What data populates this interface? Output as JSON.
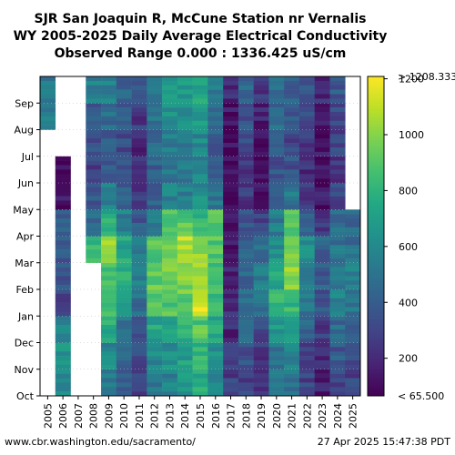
{
  "chart_data": {
    "type": "heatmap",
    "title_lines": [
      "SJR San Joaquin R, McCune Station nr Vernalis",
      "WY 2005-2025 Daily Average Electrical Conductivity",
      "Observed Range 0.000 : 1336.425 uS/cm"
    ],
    "x_categories": [
      "2005",
      "2006",
      "2007",
      "2008",
      "2009",
      "2010",
      "2011",
      "2012",
      "2013",
      "2014",
      "2015",
      "2016",
      "2017",
      "2018",
      "2019",
      "2020",
      "2021",
      "2022",
      "2023",
      "2024",
      "2025"
    ],
    "y_categories": [
      "Oct",
      "Nov",
      "Dec",
      "Jan",
      "Feb",
      "Mar",
      "Apr",
      "May",
      "Jun",
      "Jul",
      "Aug",
      "Sep"
    ],
    "colorbar": {
      "min": 65.5,
      "max": 1208.333,
      "ticks": [
        200,
        400,
        600,
        800,
        1000,
        1200
      ],
      "min_label": "< 65.500",
      "max_label": "> 1208.333",
      "colormap": "viridis"
    },
    "monthly_values": [
      [
        null,
        null,
        null,
        null,
        null,
        null,
        null,
        null,
        null,
        null,
        520,
        520
      ],
      [
        600,
        650,
        560,
        300,
        350,
        380,
        420,
        120,
        130,
        null,
        null,
        null
      ],
      [
        null,
        null,
        null,
        null,
        null,
        null,
        null,
        null,
        null,
        null,
        null,
        null
      ],
      [
        null,
        null,
        null,
        null,
        null,
        820,
        480,
        360,
        300,
        320,
        380,
        560
      ],
      [
        520,
        600,
        780,
        820,
        880,
        1050,
        760,
        560,
        420,
        400,
        460,
        540
      ],
      [
        400,
        450,
        520,
        700,
        760,
        740,
        560,
        380,
        340,
        330,
        370,
        430
      ],
      [
        280,
        330,
        380,
        480,
        560,
        560,
        380,
        240,
        200,
        210,
        260,
        320
      ],
      [
        520,
        600,
        720,
        860,
        940,
        900,
        560,
        420,
        420,
        470,
        520,
        560
      ],
      [
        560,
        620,
        740,
        900,
        960,
        940,
        860,
        560,
        520,
        560,
        620,
        680
      ],
      [
        660,
        700,
        800,
        940,
        1000,
        1100,
        900,
        560,
        520,
        560,
        620,
        680
      ],
      [
        760,
        800,
        900,
        1150,
        1050,
        1000,
        820,
        620,
        560,
        600,
        660,
        720
      ],
      [
        560,
        620,
        740,
        860,
        880,
        900,
        880,
        500,
        360,
        400,
        460,
        520
      ],
      [
        280,
        240,
        200,
        220,
        180,
        160,
        140,
        110,
        90,
        100,
        140,
        200
      ],
      [
        300,
        360,
        440,
        520,
        460,
        420,
        380,
        260,
        240,
        300,
        360,
        420
      ],
      [
        240,
        260,
        300,
        480,
        560,
        460,
        300,
        160,
        120,
        140,
        180,
        220
      ],
      [
        480,
        520,
        660,
        800,
        720,
        640,
        540,
        400,
        360,
        400,
        460,
        500
      ],
      [
        520,
        560,
        680,
        820,
        1000,
        960,
        900,
        520,
        360,
        300,
        380,
        420
      ],
      [
        300,
        320,
        420,
        520,
        560,
        600,
        400,
        260,
        220,
        260,
        300,
        340
      ],
      [
        160,
        180,
        260,
        360,
        400,
        420,
        260,
        140,
        100,
        120,
        160,
        200
      ],
      [
        320,
        380,
        460,
        560,
        520,
        500,
        460,
        320,
        260,
        300,
        340,
        380
      ],
      [
        300,
        360,
        440,
        520,
        540,
        480,
        440,
        null,
        null,
        null,
        null,
        null
      ]
    ]
  },
  "footer": {
    "left": "www.cbr.washington.edu/sacramento/",
    "right": "27 Apr 2025 15:47:38 PDT"
  }
}
